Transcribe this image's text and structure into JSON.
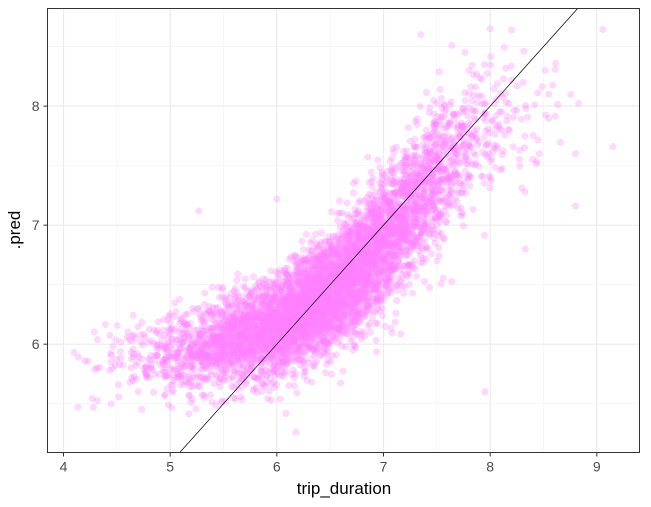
{
  "chart_data": {
    "type": "scatter",
    "title": "",
    "xlabel": "trip_duration",
    "ylabel": ".pred",
    "xlim": [
      3.85,
      9.4
    ],
    "ylim": [
      5.09,
      8.82
    ],
    "x_ticks": [
      4,
      5,
      6,
      7,
      8,
      9
    ],
    "y_ticks": [
      6,
      7,
      8
    ],
    "x_tick_labels": [
      "4",
      "5",
      "6",
      "7",
      "8",
      "9"
    ],
    "y_tick_labels": [
      "6",
      "7",
      "8"
    ],
    "grid": true,
    "legend": "none",
    "point_color": "#ff80ff",
    "point_alpha": 0.3,
    "reference_line": {
      "type": "abline",
      "slope": 1,
      "intercept": 0,
      "color": "#000000"
    },
    "point_cloud": {
      "n": 6000,
      "x_mean": 6.45,
      "x_sd": 0.72,
      "x_range": [
        4.1,
        9.15
      ],
      "trend_x": [
        4.0,
        4.5,
        5.0,
        5.5,
        6.0,
        6.5,
        7.0,
        7.5,
        8.0,
        8.5,
        9.2
      ],
      "trend_y": [
        5.8,
        5.85,
        5.92,
        6.02,
        6.17,
        6.42,
        6.85,
        7.4,
        7.82,
        7.95,
        8.0
      ],
      "noise_sd_x": [
        4.0,
        6.0,
        7.0,
        8.0,
        9.2
      ],
      "noise_sd_y": [
        0.16,
        0.2,
        0.27,
        0.3,
        0.3
      ]
    },
    "notable_points": [
      {
        "x": 4.1,
        "y": 5.93
      },
      {
        "x": 4.28,
        "y": 5.47
      },
      {
        "x": 5.03,
        "y": 5.61
      },
      {
        "x": 5.27,
        "y": 7.12
      },
      {
        "x": 6.18,
        "y": 5.26
      },
      {
        "x": 6.0,
        "y": 7.22
      },
      {
        "x": 7.95,
        "y": 5.6
      },
      {
        "x": 8.33,
        "y": 6.8
      },
      {
        "x": 8.8,
        "y": 7.16
      },
      {
        "x": 9.15,
        "y": 7.66
      },
      {
        "x": 8.8,
        "y": 7.6
      },
      {
        "x": 7.35,
        "y": 8.6
      },
      {
        "x": 8.0,
        "y": 8.65
      },
      {
        "x": 8.55,
        "y": 8.1
      }
    ]
  }
}
